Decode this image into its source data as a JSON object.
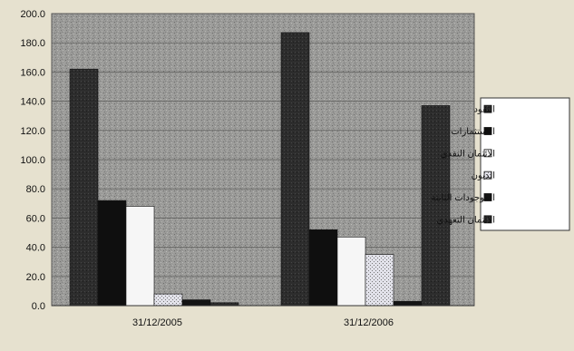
{
  "chart_data": {
    "type": "bar",
    "categories": [
      "31/12/2005",
      "31/12/2006"
    ],
    "ylim": [
      0,
      200
    ],
    "yticks": [
      "0.0",
      "20.0",
      "40.0",
      "60.0",
      "80.0",
      "100.0",
      "120.0",
      "140.0",
      "160.0",
      "180.0",
      "200.0"
    ],
    "grid": true,
    "legend_position": "right",
    "series": [
      {
        "name": "النقود",
        "values": [
          162,
          187
        ],
        "color": "#2a2a2a"
      },
      {
        "name": "الاستثمارات",
        "values": [
          72,
          52
        ],
        "color": "#111111"
      },
      {
        "name": "الائتمان النقدي",
        "values": [
          68,
          47
        ],
        "color": "#f4f4f4"
      },
      {
        "name": "الديون",
        "values": [
          8,
          35
        ],
        "color": "#d8d8e4"
      },
      {
        "name": "الموجودات الثابتة",
        "values": [
          4,
          3
        ],
        "color": "#1a1a1a"
      },
      {
        "name": "الائتمان التعهدي",
        "values": [
          2,
          137
        ],
        "color": "#333333"
      }
    ]
  }
}
